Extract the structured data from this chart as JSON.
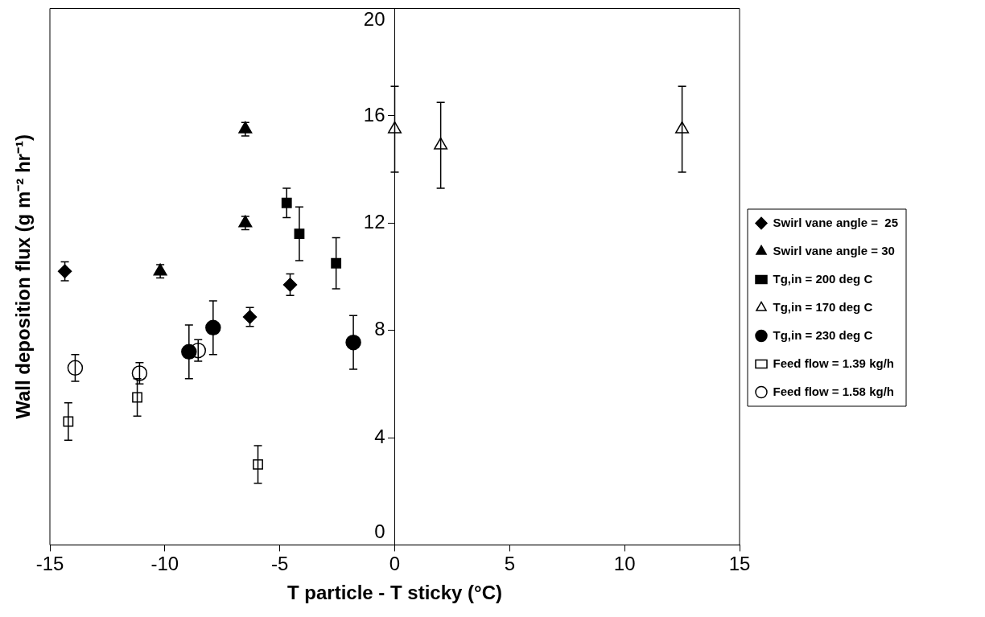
{
  "chart_data": {
    "type": "scatter",
    "xlabel": "T particle - T sticky (°C)",
    "ylabel": "Wall deposition flux (g m⁻² hr⁻¹)",
    "xlim": [
      -15,
      15
    ],
    "xticks": [
      -15,
      -10,
      -5,
      0,
      5,
      10,
      15
    ],
    "ylim": [
      0,
      20
    ],
    "yticks": [
      0,
      4,
      8,
      12,
      16,
      20
    ],
    "grid": false,
    "legend": "right",
    "series": [
      {
        "name": "Swirl vane angle =  25",
        "color": "#000000",
        "marker": "diamond",
        "x": [
          -14.35,
          -6.3,
          -4.55
        ],
        "values": [
          10.2,
          8.5,
          9.7
        ],
        "errors": [
          0.35,
          0.35,
          0.4
        ]
      },
      {
        "name": "Swirl vane angle = 30",
        "color": "#000000",
        "marker": "triangle",
        "x": [
          -10.2,
          -6.5,
          -6.5
        ],
        "values": [
          10.2,
          12.0,
          15.5
        ],
        "errors": [
          0.25,
          0.25,
          0.25
        ]
      },
      {
        "name": "Tg,in = 200 deg C",
        "color": "#000000",
        "marker": "square",
        "x": [
          -4.7,
          -4.15,
          -2.55
        ],
        "values": [
          12.75,
          11.6,
          10.5
        ],
        "errors": [
          0.55,
          1.0,
          0.95
        ]
      },
      {
        "name": "Tg,in = 170 deg C",
        "color": "#ffffff",
        "marker": "triangle",
        "x": [
          0,
          2,
          12.5
        ],
        "values": [
          15.5,
          14.9,
          15.5
        ],
        "errors": [
          1.6,
          1.6,
          1.6
        ]
      },
      {
        "name": "Tg,in = 230 deg C",
        "color": "#000000",
        "marker": "circle",
        "x": [
          -8.95,
          -7.9,
          -1.8
        ],
        "values": [
          7.2,
          8.1,
          7.55
        ],
        "errors": [
          1.0,
          1.0,
          1.0
        ]
      },
      {
        "name": "Feed flow = 1.39 kg/h",
        "color": "#ffffff",
        "marker": "square",
        "x": [
          -14.2,
          -11.2,
          -5.95
        ],
        "values": [
          4.6,
          5.5,
          3.0
        ],
        "errors": [
          0.7,
          0.7,
          0.7
        ]
      },
      {
        "name": "Feed flow = 1.58 kg/h",
        "color": "#ffffff",
        "marker": "circle",
        "x": [
          -13.9,
          -11.1,
          -8.55
        ],
        "values": [
          6.6,
          6.4,
          7.25
        ],
        "errors": [
          0.5,
          0.4,
          0.4
        ]
      }
    ]
  }
}
